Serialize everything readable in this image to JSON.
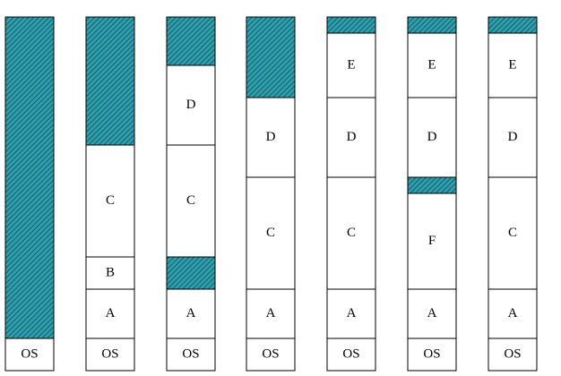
{
  "diagram": {
    "colors": {
      "free": "#2e9fad",
      "hatch": "#0d3f47",
      "used": "#ffffff",
      "outline": "#000000"
    },
    "columns": [
      {
        "segments": [
          {
            "kind": "used",
            "label": "OS"
          },
          {
            "kind": "free",
            "label": ""
          }
        ]
      },
      {
        "segments": [
          {
            "kind": "used",
            "label": "OS"
          },
          {
            "kind": "used",
            "label": "A"
          },
          {
            "kind": "used",
            "label": "B"
          },
          {
            "kind": "used",
            "label": "C"
          },
          {
            "kind": "free",
            "label": ""
          }
        ]
      },
      {
        "segments": [
          {
            "kind": "used",
            "label": "OS"
          },
          {
            "kind": "used",
            "label": "A"
          },
          {
            "kind": "free",
            "label": ""
          },
          {
            "kind": "used",
            "label": "C"
          },
          {
            "kind": "used",
            "label": "D"
          },
          {
            "kind": "free",
            "label": ""
          }
        ]
      },
      {
        "segments": [
          {
            "kind": "used",
            "label": "OS"
          },
          {
            "kind": "used",
            "label": "A"
          },
          {
            "kind": "used",
            "label": "C"
          },
          {
            "kind": "used",
            "label": "D"
          },
          {
            "kind": "free",
            "label": ""
          }
        ]
      },
      {
        "segments": [
          {
            "kind": "used",
            "label": "OS"
          },
          {
            "kind": "used",
            "label": "A"
          },
          {
            "kind": "used",
            "label": "C"
          },
          {
            "kind": "used",
            "label": "D"
          },
          {
            "kind": "used",
            "label": "E"
          },
          {
            "kind": "free",
            "label": ""
          }
        ]
      },
      {
        "segments": [
          {
            "kind": "used",
            "label": "OS"
          },
          {
            "kind": "used",
            "label": "A"
          },
          {
            "kind": "used",
            "label": "F"
          },
          {
            "kind": "free",
            "label": ""
          },
          {
            "kind": "used",
            "label": "D"
          },
          {
            "kind": "used",
            "label": "E"
          },
          {
            "kind": "free",
            "label": ""
          }
        ]
      },
      {
        "segments": [
          {
            "kind": "used",
            "label": "OS"
          },
          {
            "kind": "used",
            "label": "A"
          },
          {
            "kind": "used",
            "label": "C"
          },
          {
            "kind": "used",
            "label": "D"
          },
          {
            "kind": "used",
            "label": "E"
          },
          {
            "kind": "free",
            "label": ""
          }
        ]
      }
    ]
  }
}
